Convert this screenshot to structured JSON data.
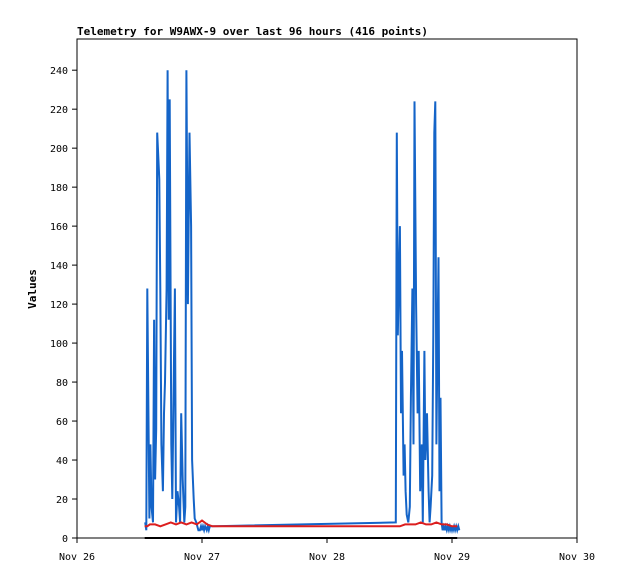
{
  "chart_data": {
    "type": "line",
    "title": "Telemetry for W9AWX-9 over last 96 hours (416 points)",
    "xlabel": "",
    "ylabel": "Values",
    "xlim": [
      0,
      96
    ],
    "ylim": [
      0,
      256
    ],
    "x_ticks": [
      {
        "value": 0,
        "label": "Nov 26"
      },
      {
        "value": 24,
        "label": "Nov 27"
      },
      {
        "value": 48,
        "label": "Nov 28"
      },
      {
        "value": 72,
        "label": "Nov 29"
      },
      {
        "value": 96,
        "label": "Nov 30"
      }
    ],
    "y_ticks": [
      0,
      20,
      40,
      60,
      80,
      100,
      120,
      140,
      160,
      180,
      200,
      220,
      240
    ],
    "grid": false,
    "legend": "none",
    "series": [
      {
        "color": "#1464c8",
        "x": [
          13.1,
          13.3,
          13.5,
          13.9,
          14.1,
          14.3,
          14.6,
          14.8,
          15.0,
          15.2,
          15.4,
          15.8,
          16.0,
          16.2,
          16.5,
          16.7,
          16.9,
          17.2,
          17.4,
          17.6,
          17.8,
          18.1,
          18.3,
          18.6,
          18.8,
          19.0,
          19.3,
          19.6,
          19.8,
          20.0,
          20.3,
          20.6,
          20.8,
          21.0,
          21.3,
          21.6,
          21.9,
          22.1,
          22.4,
          22.6,
          22.9,
          23.1,
          23.3,
          23.6,
          23.8,
          24.0,
          24.2,
          24.4,
          24.6,
          24.9,
          25.1,
          25.3,
          25.5,
          61.2,
          61.4,
          61.6,
          62.0,
          62.2,
          62.4,
          62.7,
          62.9,
          63.1,
          63.3,
          63.6,
          63.9,
          64.1,
          64.4,
          64.6,
          64.8,
          65.1,
          65.4,
          65.6,
          65.9,
          66.2,
          66.4,
          66.7,
          66.9,
          67.2,
          67.5,
          67.7,
          67.9,
          68.2,
          68.4,
          68.6,
          68.8,
          69.0,
          69.2,
          69.4,
          69.6,
          69.8,
          70.0,
          70.2,
          70.4,
          70.6,
          70.8,
          71.0,
          71.2,
          71.4,
          71.6,
          71.8,
          72.0,
          72.2,
          72.4,
          72.6,
          72.8,
          73.0,
          73.2,
          73.4
        ],
        "values": [
          8,
          4,
          128,
          10,
          48,
          16,
          8,
          112,
          30,
          56,
          208,
          184,
          128,
          48,
          24,
          64,
          80,
          128,
          240,
          112,
          225,
          48,
          20,
          88,
          128,
          8,
          24,
          16,
          8,
          64,
          30,
          8,
          16,
          240,
          120,
          208,
          160,
          40,
          20,
          10,
          8,
          6,
          4,
          4,
          6,
          4,
          6,
          4,
          6,
          4,
          6,
          4,
          6,
          8,
          208,
          104,
          160,
          64,
          96,
          32,
          48,
          24,
          12,
          8,
          16,
          72,
          128,
          48,
          224,
          120,
          64,
          96,
          24,
          48,
          8,
          96,
          40,
          64,
          24,
          8,
          16,
          32,
          104,
          208,
          224,
          48,
          96,
          144,
          24,
          72,
          8,
          4,
          6,
          4,
          6,
          4,
          6,
          4,
          6,
          4,
          6,
          4,
          6,
          4,
          6,
          4,
          6,
          4
        ]
      },
      {
        "color": "#dc1e1e",
        "x": [
          13,
          13.5,
          14,
          15,
          16,
          17,
          18,
          19,
          20,
          21,
          22,
          23,
          24,
          25,
          26,
          30,
          35,
          40,
          45,
          50,
          55,
          60,
          61,
          62,
          63,
          64,
          65,
          66,
          67,
          68,
          69,
          70,
          71,
          72,
          73
        ],
        "values": [
          6,
          6,
          7,
          7,
          6,
          7,
          8,
          7,
          8,
          7,
          8,
          7,
          9,
          7,
          6,
          6,
          6,
          6,
          6,
          6,
          6,
          6,
          6,
          6,
          7,
          7,
          7,
          8,
          7,
          7,
          8,
          7,
          7,
          6,
          6
        ]
      },
      {
        "color": "#000000",
        "x": [
          13,
          25.5,
          61,
          73
        ],
        "values": [
          0,
          0,
          0,
          0
        ]
      }
    ]
  }
}
